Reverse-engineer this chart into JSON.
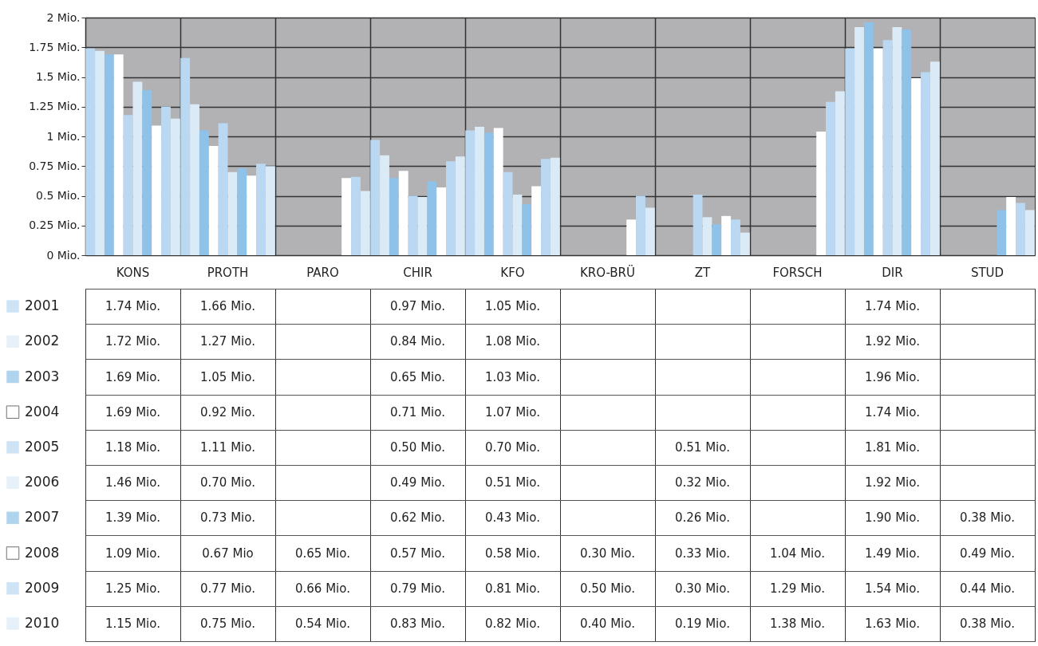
{
  "chart_data": {
    "type": "bar",
    "categories": [
      "KONS",
      "PROTH",
      "PARO",
      "CHIR",
      "KFO",
      "KRO-BRÜ",
      "ZT",
      "FORSCH",
      "DIR",
      "STUD"
    ],
    "ylim": [
      0,
      2
    ],
    "yticks": [
      {
        "value": 0,
        "label": "0 Mio."
      },
      {
        "value": 0.25,
        "label": "0.25 Mio."
      },
      {
        "value": 0.5,
        "label": "0.5 Mio."
      },
      {
        "value": 0.75,
        "label": "0.75 Mio."
      },
      {
        "value": 1,
        "label": "1 Mio."
      },
      {
        "value": 1.25,
        "label": "1.25 Mio."
      },
      {
        "value": 1.5,
        "label": "1.5 Mio."
      },
      {
        "value": 1.75,
        "label": "1.75 Mio."
      },
      {
        "value": 2,
        "label": "2 Mio."
      }
    ],
    "grid": true,
    "legend": "bottom left",
    "series": [
      {
        "name": "2001",
        "color": "#bad8f1",
        "values": [
          1.74,
          1.66,
          null,
          0.97,
          1.05,
          null,
          null,
          null,
          1.74,
          null
        ],
        "value_labels": [
          "1.74 Mio.",
          "1.66 Mio.",
          null,
          "0.97 Mio.",
          "1.05 Mio.",
          null,
          null,
          null,
          "1.74 Mio.",
          null
        ]
      },
      {
        "name": "2002",
        "color": "#dbeaf7",
        "values": [
          1.72,
          1.27,
          null,
          0.84,
          1.08,
          null,
          null,
          null,
          1.92,
          null
        ],
        "value_labels": [
          "1.72 Mio.",
          "1.27 Mio.",
          null,
          "0.84 Mio.",
          "1.08 Mio.",
          null,
          null,
          null,
          "1.92 Mio.",
          null
        ]
      },
      {
        "name": "2003",
        "color": "#8ec2e8",
        "values": [
          1.69,
          1.05,
          null,
          0.65,
          1.03,
          null,
          null,
          null,
          1.96,
          null
        ],
        "value_labels": [
          "1.69 Mio.",
          "1.05 Mio.",
          null,
          "0.65 Mio.",
          "1.03 Mio.",
          null,
          null,
          null,
          "1.96 Mio.",
          null
        ]
      },
      {
        "name": "2004",
        "color": "#ffffff",
        "values": [
          1.69,
          0.92,
          null,
          0.71,
          1.07,
          null,
          null,
          null,
          1.74,
          null
        ],
        "value_labels": [
          "1.69 Mio.",
          "0.92 Mio.",
          null,
          "0.71 Mio.",
          "1.07 Mio.",
          null,
          null,
          null,
          "1.74 Mio.",
          null
        ]
      },
      {
        "name": "2005",
        "color": "#bad8f1",
        "values": [
          1.18,
          1.11,
          null,
          0.5,
          0.7,
          null,
          0.51,
          null,
          1.81,
          null
        ],
        "value_labels": [
          "1.18 Mio.",
          "1.11 Mio.",
          null,
          "0.50 Mio.",
          "0.70 Mio.",
          null,
          "0.51 Mio.",
          null,
          "1.81 Mio.",
          null
        ]
      },
      {
        "name": "2006",
        "color": "#dbeaf7",
        "values": [
          1.46,
          0.7,
          null,
          0.49,
          0.51,
          null,
          0.32,
          null,
          1.92,
          null
        ],
        "value_labels": [
          "1.46 Mio.",
          "0.70 Mio.",
          null,
          "0.49 Mio.",
          "0.51 Mio.",
          null,
          "0.32 Mio.",
          null,
          "1.92 Mio.",
          null
        ]
      },
      {
        "name": "2007",
        "color": "#8ec2e8",
        "values": [
          1.39,
          0.73,
          null,
          0.62,
          0.43,
          null,
          0.26,
          null,
          1.9,
          0.38
        ],
        "value_labels": [
          "1.39 Mio.",
          "0.73 Mio.",
          null,
          "0.62 Mio.",
          "0.43 Mio.",
          null,
          "0.26 Mio.",
          null,
          "1.90 Mio.",
          "0.38 Mio."
        ]
      },
      {
        "name": "2008",
        "color": "#ffffff",
        "values": [
          1.09,
          0.67,
          0.65,
          0.57,
          0.58,
          0.3,
          0.33,
          1.04,
          1.49,
          0.49
        ],
        "value_labels": [
          "1.09 Mio.",
          "0.67 Mio",
          "0.65 Mio.",
          "0.57 Mio.",
          "0.58 Mio.",
          "0.30 Mio.",
          "0.33 Mio.",
          "1.04 Mio.",
          "1.49 Mio.",
          "0.49 Mio."
        ]
      },
      {
        "name": "2009",
        "color": "#bad8f1",
        "values": [
          1.25,
          0.77,
          0.66,
          0.79,
          0.81,
          0.5,
          0.3,
          1.29,
          1.54,
          0.44
        ],
        "value_labels": [
          "1.25 Mio.",
          "0.77 Mio.",
          "0.66 Mio.",
          "0.79 Mio.",
          "0.81 Mio.",
          "0.50 Mio.",
          "0.30 Mio.",
          "1.29 Mio.",
          "1.54 Mio.",
          "0.44 Mio."
        ]
      },
      {
        "name": "2010",
        "color": "#dbeaf7",
        "values": [
          1.15,
          0.75,
          0.54,
          0.83,
          0.82,
          0.4,
          0.19,
          1.38,
          1.63,
          0.38
        ],
        "value_labels": [
          "1.15 Mio.",
          "0.75 Mio.",
          "0.54 Mio.",
          "0.83 Mio.",
          "0.82 Mio.",
          "0.40 Mio.",
          "0.19 Mio.",
          "1.38 Mio.",
          "1.63 Mio.",
          "0.38 Mio."
        ]
      }
    ]
  }
}
